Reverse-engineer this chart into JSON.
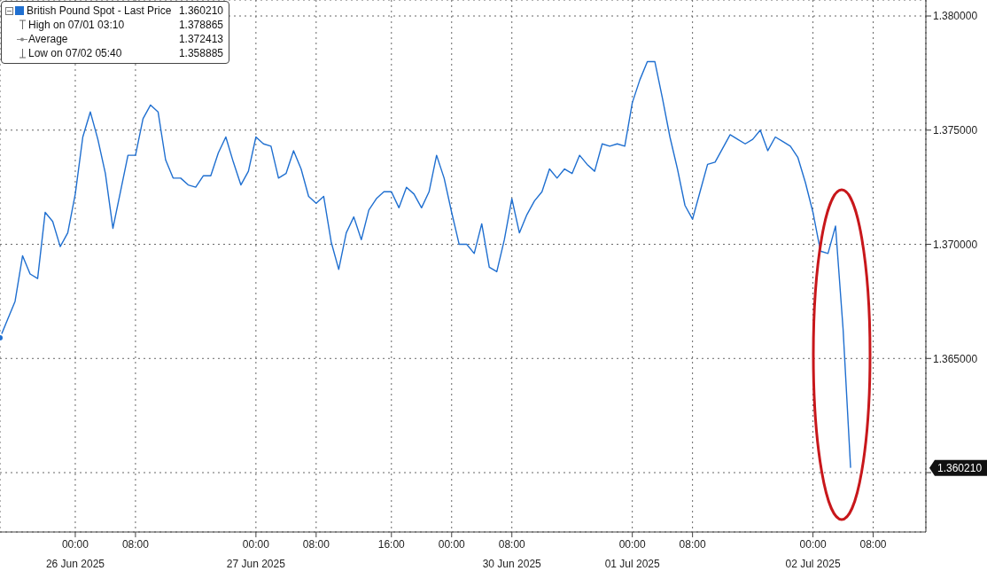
{
  "chart_data": {
    "type": "line",
    "categories": [
      null,
      null,
      null,
      null,
      null,
      null,
      null,
      null,
      null,
      null,
      "00:00\n26 Jun 2025",
      null,
      null,
      null,
      null,
      null,
      null,
      null,
      "08:00",
      null,
      null,
      null,
      null,
      null,
      null,
      null,
      null,
      null,
      null,
      null,
      null,
      null,
      null,
      null,
      "00:00\n27 Jun 2025",
      null,
      null,
      null,
      null,
      null,
      null,
      null,
      "08:00",
      null,
      null,
      null,
      null,
      null,
      null,
      null,
      null,
      null,
      "16:00",
      null,
      null,
      null,
      null,
      null,
      null,
      null,
      "00:00",
      null,
      null,
      null,
      null,
      null,
      null,
      null,
      "08:00\n30 Jun 2025",
      null,
      null,
      null,
      null,
      null,
      null,
      null,
      null,
      null,
      null,
      null,
      null,
      null,
      null,
      null,
      "00:00\n01 Jul 2025",
      null,
      null,
      null,
      null,
      null,
      null,
      null,
      "08:00",
      null,
      null,
      null,
      null,
      null,
      null,
      null,
      null,
      null,
      null,
      null,
      null,
      null,
      null,
      null,
      "00:00\n02 Jul 2025",
      null,
      null,
      null,
      null,
      null,
      null,
      null,
      "08:00",
      null,
      null,
      null,
      null,
      null,
      null,
      null
    ],
    "series": [
      {
        "name": "British Pound Spot - Last Price",
        "color": "#1f6fd0",
        "values": [
          1.3659,
          1.3667,
          1.3675,
          1.3695,
          1.3687,
          1.3685,
          1.3714,
          1.371,
          1.3699,
          1.3705,
          1.3722,
          1.3747,
          1.3758,
          1.3746,
          1.3731,
          1.3707,
          1.3723,
          1.3739,
          1.3739,
          1.3755,
          1.3761,
          1.3758,
          1.3737,
          1.3729,
          1.3729,
          1.3726,
          1.3725,
          1.373,
          1.373,
          1.374,
          1.3747,
          1.3736,
          1.3726,
          1.3732,
          1.3747,
          1.3744,
          1.3743,
          1.3729,
          1.3731,
          1.3741,
          1.3733,
          1.3721,
          1.3718,
          1.3721,
          1.3701,
          1.3689,
          1.3705,
          1.3712,
          1.3702,
          1.3715,
          1.372,
          1.3723,
          1.3723,
          1.3716,
          1.3725,
          1.3722,
          1.3716,
          1.3723,
          1.3739,
          1.3729,
          1.3714,
          1.37,
          1.37,
          1.3696,
          1.3709,
          1.369,
          1.3688,
          1.3702,
          1.372,
          1.3705,
          1.3713,
          1.3719,
          1.3723,
          1.3733,
          1.3729,
          1.3733,
          1.3731,
          1.3739,
          1.3735,
          1.3732,
          1.3744,
          1.3743,
          1.3744,
          1.3743,
          1.3762,
          1.3772,
          1.378,
          1.378,
          1.3764,
          1.3747,
          1.3733,
          1.3717,
          1.3711,
          1.3723,
          1.3735,
          1.3736,
          1.3742,
          1.3748,
          1.3746,
          1.3744,
          1.3746,
          1.375,
          1.3741,
          1.3747,
          1.3745,
          1.3743,
          1.3738,
          1.3727,
          1.3714,
          1.3697,
          1.3696,
          1.3708,
          1.3663,
          1.36021,
          null,
          null,
          null,
          null,
          null,
          null,
          null,
          null,
          null,
          null
        ]
      }
    ],
    "ylim": [
      1.3574,
      1.3807
    ],
    "yticks": [
      {
        "value": 1.36,
        "label": null
      },
      {
        "value": 1.365,
        "label": "1.365000"
      },
      {
        "value": 1.37,
        "label": "1.370000"
      },
      {
        "value": 1.375,
        "label": "1.375000"
      },
      {
        "value": 1.38,
        "label": "1.380000"
      }
    ],
    "grid": true,
    "legend": "top left",
    "annotations": [
      "1.360210",
      "High on 07/01 03:10",
      "1.378865",
      "Average",
      "1.372413",
      "Low on 07/02 05:40",
      "1.358885"
    ]
  }
}
